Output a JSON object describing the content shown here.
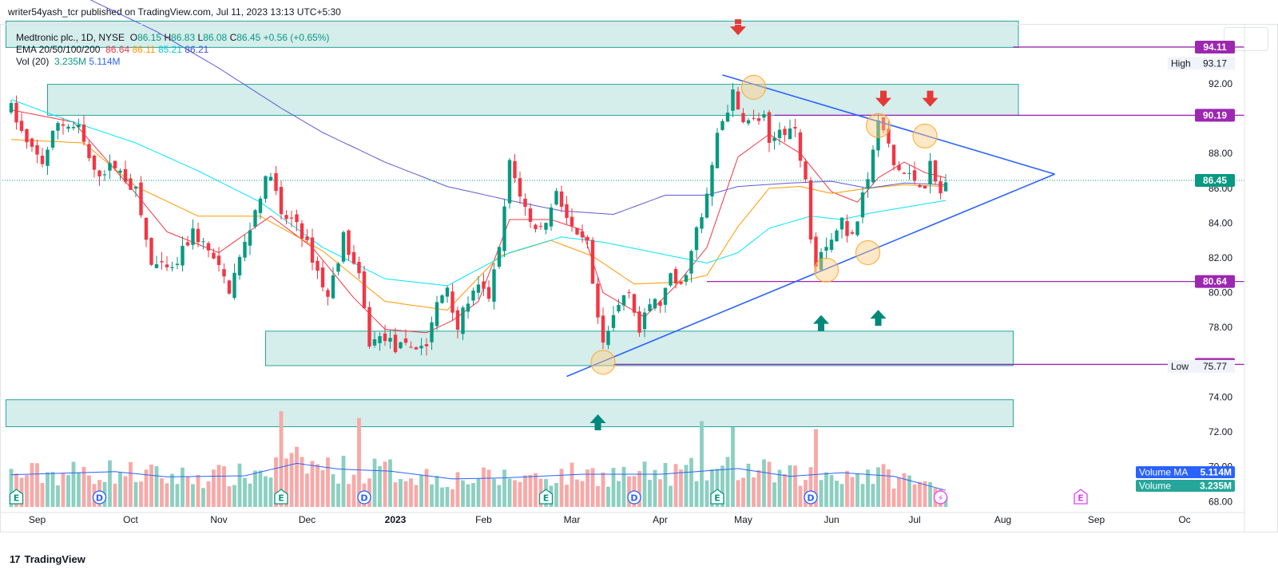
{
  "header": {
    "publisher": "writer54yash_tcr published on TradingView.com, Jul 11, 2023 13:13 UTC+5:30"
  },
  "legend": {
    "symbol": "Medtronic plc., 1D, NYSE",
    "open_label": "O",
    "open": "86.15",
    "high_label": "H",
    "high": "86.83",
    "low_label": "L",
    "low": "86.08",
    "close_label": "C",
    "close": "86.45",
    "change": "+0.56 (+0.65%)",
    "ema_label": "EMA 20/50/100/200",
    "ema20": "86.64",
    "ema50": "86.11",
    "ema100": "85.21",
    "ema200": "86.21",
    "vol_label": "Vol (20)",
    "vol": "3.235M",
    "vol_ma": "5.114M"
  },
  "footer": {
    "brand": "TradingView"
  },
  "colors": {
    "up": "#089981",
    "down": "#f23645",
    "ema20": "#f23645",
    "ema50": "#ff9800",
    "ema100": "#00e5ff",
    "ema200": "#5b5bd6",
    "level": "#9c27b0",
    "trendline": "#2962ff",
    "zone": "#b2dfdb"
  },
  "chart_data": {
    "type": "candlestick",
    "y_axis": {
      "ticks": [
        "92.00",
        "90.00",
        "88.00",
        "86.00",
        "84.00",
        "82.00",
        "80.00",
        "78.00",
        "76.00",
        "74.00",
        "72.00",
        "70.00",
        "68.00"
      ],
      "range": [
        67.6,
        95.3
      ]
    },
    "x_axis": {
      "ticks": [
        "Sep",
        "Oct",
        "Nov",
        "Dec",
        "2023",
        "Feb",
        "Mar",
        "Apr",
        "May",
        "Jun",
        "Jul",
        "Aug",
        "Sep",
        "Oc"
      ]
    },
    "last_price": "86.45",
    "levels": [
      "94.11",
      "90.19",
      "80.64",
      "75.88"
    ],
    "high": {
      "label": "High",
      "value": "93.17"
    },
    "low": {
      "label": "Low",
      "value": "75.77"
    },
    "volume_labels": [
      {
        "label": "Volume MA",
        "value": "5.114M"
      },
      {
        "label": "Volume",
        "value": "3.235M"
      }
    ],
    "event_markers": [
      "E",
      "D",
      "E",
      "D",
      "E",
      "D",
      "E",
      "D",
      "⚡",
      "E"
    ],
    "price_path": [
      [
        0,
        90.6
      ],
      [
        3,
        88.5
      ],
      [
        6,
        87.5
      ],
      [
        9,
        89.8
      ],
      [
        13,
        89.4
      ],
      [
        16,
        86.8
      ],
      [
        20,
        87.3
      ],
      [
        24,
        85.8
      ],
      [
        27,
        81.6
      ],
      [
        31,
        81.2
      ],
      [
        35,
        83.5
      ],
      [
        38,
        82.4
      ],
      [
        42,
        80.2
      ],
      [
        45,
        82.8
      ],
      [
        48,
        85.7
      ],
      [
        50,
        87.0
      ],
      [
        52,
        84.3
      ],
      [
        55,
        84.1
      ],
      [
        58,
        82.0
      ],
      [
        61,
        79.7
      ],
      [
        64,
        83.2
      ],
      [
        67,
        80.8
      ],
      [
        69,
        77.1
      ],
      [
        72,
        77.5
      ],
      [
        74,
        76.8
      ],
      [
        77,
        76.9
      ],
      [
        80,
        77.0
      ],
      [
        82,
        79.3
      ],
      [
        84,
        80.4
      ],
      [
        86,
        78.0
      ],
      [
        88,
        79.6
      ],
      [
        90,
        80.2
      ],
      [
        92,
        79.8
      ],
      [
        94,
        82.4
      ],
      [
        96,
        87.4
      ],
      [
        98,
        85.7
      ],
      [
        100,
        84.0
      ],
      [
        102,
        83.7
      ],
      [
        104,
        84.8
      ],
      [
        105,
        86.0
      ],
      [
        107,
        84.3
      ],
      [
        109,
        83.0
      ],
      [
        111,
        82.8
      ],
      [
        112,
        80.2
      ],
      [
        114,
        76.8
      ],
      [
        116,
        78.6
      ],
      [
        118,
        79.9
      ],
      [
        119,
        80.3
      ],
      [
        121,
        77.7
      ],
      [
        123,
        79.4
      ],
      [
        125,
        79.4
      ],
      [
        127,
        80.8
      ],
      [
        129,
        80.3
      ],
      [
        131,
        82.3
      ],
      [
        132,
        83.6
      ],
      [
        133,
        84.2
      ],
      [
        135,
        87.1
      ],
      [
        136,
        89.2
      ],
      [
        138,
        90.6
      ],
      [
        139,
        91.4
      ],
      [
        140,
        90.4
      ],
      [
        142,
        89.8
      ],
      [
        145,
        90.0
      ],
      [
        146,
        88.3
      ],
      [
        148,
        89.4
      ],
      [
        151,
        89.4
      ],
      [
        152,
        87.4
      ],
      [
        153,
        86.8
      ],
      [
        154,
        83.4
      ],
      [
        155,
        81.8
      ],
      [
        156,
        82.6
      ],
      [
        158,
        83.1
      ],
      [
        160,
        84.2
      ],
      [
        161,
        83.1
      ],
      [
        163,
        84.3
      ],
      [
        164,
        86.0
      ],
      [
        165,
        86.4
      ],
      [
        166,
        88.3
      ],
      [
        167,
        89.7
      ],
      [
        168,
        89.3
      ],
      [
        169,
        88.4
      ],
      [
        170,
        87.3
      ],
      [
        172,
        86.8
      ],
      [
        174,
        86.5
      ],
      [
        176,
        86.2
      ],
      [
        177,
        87.3
      ],
      [
        178,
        86.3
      ],
      [
        179,
        85.7
      ],
      [
        180,
        86.45
      ]
    ],
    "volume_path": [
      [
        0,
        6.2
      ],
      [
        20,
        6.8
      ],
      [
        30,
        5.8
      ],
      [
        45,
        6.0
      ],
      [
        55,
        8.4
      ],
      [
        63,
        7.3
      ],
      [
        73,
        6.9
      ],
      [
        85,
        5.4
      ],
      [
        95,
        5.6
      ],
      [
        110,
        6.3
      ],
      [
        125,
        6.3
      ],
      [
        140,
        7.4
      ],
      [
        150,
        5.9
      ],
      [
        160,
        6.6
      ],
      [
        170,
        5.9
      ],
      [
        180,
        3.2
      ]
    ],
    "ema_paths": {
      "ema20": [
        [
          0,
          90.5
        ],
        [
          12,
          89.8
        ],
        [
          24,
          85.7
        ],
        [
          30,
          83.5
        ],
        [
          40,
          82.3
        ],
        [
          50,
          84.4
        ],
        [
          58,
          82.6
        ],
        [
          66,
          79.7
        ],
        [
          72,
          77.9
        ],
        [
          80,
          77.7
        ],
        [
          85,
          78.4
        ],
        [
          90,
          79.5
        ],
        [
          96,
          84.2
        ],
        [
          104,
          84.2
        ],
        [
          110,
          83.6
        ],
        [
          114,
          80.0
        ],
        [
          122,
          78.6
        ],
        [
          128,
          80.4
        ],
        [
          134,
          82.6
        ],
        [
          140,
          87.8
        ],
        [
          146,
          89.1
        ],
        [
          152,
          88.0
        ],
        [
          158,
          85.8
        ],
        [
          163,
          85.2
        ],
        [
          167,
          86.6
        ],
        [
          172,
          87.5
        ],
        [
          176,
          86.9
        ],
        [
          180,
          86.6
        ]
      ],
      "ema50": [
        [
          0,
          88.8
        ],
        [
          14,
          88.6
        ],
        [
          24,
          86.1
        ],
        [
          36,
          84.4
        ],
        [
          48,
          84.4
        ],
        [
          60,
          82.4
        ],
        [
          72,
          79.5
        ],
        [
          84,
          79.0
        ],
        [
          94,
          82.1
        ],
        [
          104,
          83.0
        ],
        [
          112,
          82.1
        ],
        [
          120,
          80.5
        ],
        [
          128,
          80.6
        ],
        [
          134,
          81.0
        ],
        [
          140,
          83.8
        ],
        [
          146,
          86.0
        ],
        [
          152,
          86.1
        ],
        [
          158,
          85.7
        ],
        [
          165,
          86.0
        ],
        [
          172,
          86.2
        ],
        [
          180,
          86.1
        ]
      ],
      "ema100": [
        [
          0,
          91.1
        ],
        [
          10,
          90.0
        ],
        [
          24,
          88.6
        ],
        [
          36,
          87.0
        ],
        [
          48,
          85.2
        ],
        [
          60,
          82.6
        ],
        [
          72,
          80.8
        ],
        [
          84,
          80.4
        ],
        [
          96,
          82.3
        ],
        [
          106,
          83.2
        ],
        [
          114,
          82.9
        ],
        [
          124,
          82.3
        ],
        [
          134,
          81.7
        ],
        [
          140,
          82.3
        ],
        [
          146,
          83.7
        ],
        [
          154,
          84.4
        ],
        [
          160,
          84.2
        ],
        [
          166,
          84.6
        ],
        [
          172,
          84.9
        ],
        [
          180,
          85.3
        ]
      ],
      "ema200": [
        [
          14,
          97.0
        ],
        [
          28,
          95.0
        ],
        [
          40,
          92.9
        ],
        [
          52,
          90.6
        ],
        [
          60,
          89.2
        ],
        [
          72,
          87.5
        ],
        [
          84,
          86.1
        ],
        [
          96,
          85.3
        ],
        [
          106,
          84.7
        ],
        [
          116,
          84.5
        ],
        [
          126,
          85.6
        ],
        [
          134,
          85.6
        ],
        [
          140,
          86.1
        ],
        [
          150,
          86.3
        ],
        [
          158,
          86.4
        ],
        [
          165,
          86.0
        ],
        [
          172,
          86.3
        ],
        [
          180,
          86.2
        ]
      ]
    },
    "zones": [
      {
        "from_index": -1,
        "to_index": 194,
        "low": 94.09,
        "high": 95.6
      },
      {
        "from_index": 7,
        "to_index": 194,
        "low": 90.19,
        "high": 91.97
      },
      {
        "from_index": 49,
        "to_index": 193,
        "low": 75.81,
        "high": 77.79
      },
      {
        "from_index": -1,
        "to_index": 193,
        "low": 72.3,
        "high": 73.85
      }
    ],
    "trendlines": [
      {
        "from": [
          107,
          75.19
        ],
        "to": [
          201,
          86.81
        ]
      },
      {
        "from": [
          137,
          92.51
        ],
        "to": [
          201,
          86.81
        ]
      }
    ],
    "level_lines": [
      {
        "value": 94.11,
        "from_index": 193
      },
      {
        "value": 90.19,
        "from_index": 147
      },
      {
        "value": 80.64,
        "from_index": 134
      },
      {
        "value": 75.88,
        "from_index": 116
      }
    ],
    "circles": [
      [
        114,
        76.0
      ],
      [
        143,
        91.8
      ],
      [
        157,
        81.3
      ],
      [
        165,
        82.3
      ],
      [
        167,
        89.6
      ],
      [
        176,
        89.0
      ]
    ],
    "arrows_down": [
      [
        140,
        95.2
      ],
      [
        168,
        91.1
      ],
      [
        177,
        91.1
      ]
    ],
    "arrows_up": [
      [
        156,
        78.3
      ],
      [
        167,
        78.6
      ],
      [
        113,
        72.6
      ]
    ]
  }
}
